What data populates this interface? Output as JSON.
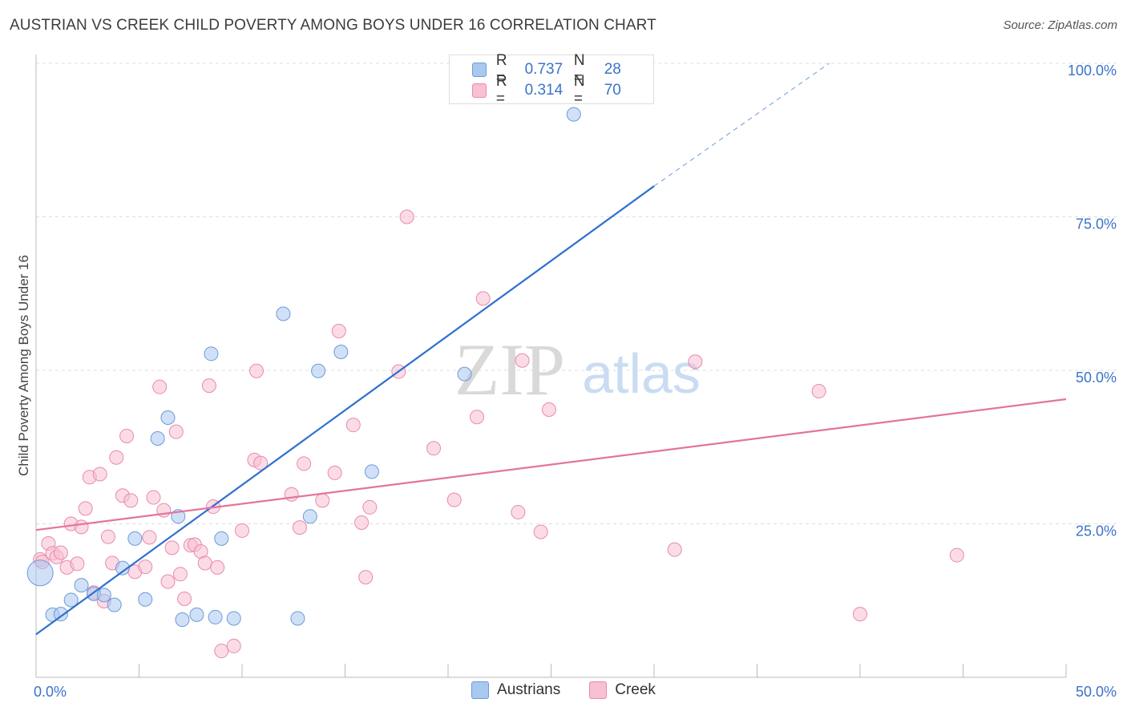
{
  "title": "AUSTRIAN VS CREEK CHILD POVERTY AMONG BOYS UNDER 16 CORRELATION CHART",
  "source": "Source: ZipAtlas.com",
  "watermark": {
    "zip": "ZIP",
    "atlas": "atlas"
  },
  "legend": {
    "r_label": "R =",
    "n_label": "N =",
    "entries": [
      {
        "r": "0.737",
        "n": "28",
        "fill": "#a9c8f0",
        "stroke": "#6b9bd8"
      },
      {
        "r": "0.314",
        "n": "70",
        "fill": "#f8c0d2",
        "stroke": "#e98aab"
      }
    ]
  },
  "colors": {
    "austrians_fill": "#a9c8f0",
    "austrians_stroke": "#6b9bd8",
    "austrians_line": "#2f6fcf",
    "creek_fill": "#f8c0d2",
    "creek_stroke": "#e98aab",
    "creek_line": "#e4749c",
    "tick_text": "#3b73c9",
    "grid": "#dddddd"
  },
  "chart_data": {
    "type": "scatter",
    "title": "AUSTRIAN VS CREEK CHILD POVERTY AMONG BOYS UNDER 16 CORRELATION CHART",
    "xlabel": "",
    "ylabel": "Child Poverty Among Boys Under 16",
    "xlim": [
      0,
      50
    ],
    "ylim": [
      0,
      100
    ],
    "x_tick_labels": [
      "0.0%",
      "50.0%"
    ],
    "y_tick_labels": [
      "25.0%",
      "50.0%",
      "75.0%",
      "100.0%"
    ],
    "y_tick_values": [
      25,
      50,
      75,
      100
    ],
    "grid": true,
    "legend_position": "top-center",
    "series": [
      {
        "name": "Austrians",
        "r": 0.737,
        "n": 28,
        "trend": {
          "x": [
            0,
            30
          ],
          "y": [
            7,
            80
          ],
          "dashed_extension_to": [
            38.5,
            100
          ]
        },
        "points": [
          {
            "x": 0.2,
            "y": 17.0,
            "big": true
          },
          {
            "x": 0.8,
            "y": 10.2
          },
          {
            "x": 1.2,
            "y": 10.3
          },
          {
            "x": 1.7,
            "y": 12.6
          },
          {
            "x": 2.2,
            "y": 15.0
          },
          {
            "x": 2.8,
            "y": 13.6
          },
          {
            "x": 3.3,
            "y": 13.4
          },
          {
            "x": 3.8,
            "y": 11.8
          },
          {
            "x": 4.2,
            "y": 17.8
          },
          {
            "x": 4.8,
            "y": 22.6
          },
          {
            "x": 5.3,
            "y": 12.7
          },
          {
            "x": 5.9,
            "y": 38.9
          },
          {
            "x": 6.4,
            "y": 42.3
          },
          {
            "x": 6.9,
            "y": 26.2
          },
          {
            "x": 7.1,
            "y": 9.4
          },
          {
            "x": 7.8,
            "y": 10.2
          },
          {
            "x": 8.5,
            "y": 52.7
          },
          {
            "x": 8.7,
            "y": 9.8
          },
          {
            "x": 9.0,
            "y": 22.6
          },
          {
            "x": 9.6,
            "y": 9.6
          },
          {
            "x": 12.0,
            "y": 59.2
          },
          {
            "x": 12.7,
            "y": 9.6
          },
          {
            "x": 13.3,
            "y": 26.2
          },
          {
            "x": 13.7,
            "y": 49.9
          },
          {
            "x": 14.8,
            "y": 53.0
          },
          {
            "x": 16.3,
            "y": 33.5
          },
          {
            "x": 20.8,
            "y": 49.4
          },
          {
            "x": 26.1,
            "y": 91.7
          }
        ]
      },
      {
        "name": "Creek",
        "r": 0.314,
        "n": 70,
        "trend": {
          "x": [
            0,
            50
          ],
          "y": [
            24,
            45.3
          ]
        },
        "points": [
          {
            "x": 0.2,
            "y": 19.2
          },
          {
            "x": 0.3,
            "y": 18.8
          },
          {
            "x": 0.6,
            "y": 21.8
          },
          {
            "x": 0.8,
            "y": 20.2
          },
          {
            "x": 1.0,
            "y": 19.6
          },
          {
            "x": 1.2,
            "y": 20.3
          },
          {
            "x": 1.5,
            "y": 17.9
          },
          {
            "x": 1.7,
            "y": 25.0
          },
          {
            "x": 2.0,
            "y": 18.5
          },
          {
            "x": 2.2,
            "y": 24.5
          },
          {
            "x": 2.4,
            "y": 27.5
          },
          {
            "x": 2.6,
            "y": 32.6
          },
          {
            "x": 2.8,
            "y": 13.8
          },
          {
            "x": 3.1,
            "y": 33.1
          },
          {
            "x": 3.3,
            "y": 12.4
          },
          {
            "x": 3.5,
            "y": 22.9
          },
          {
            "x": 3.7,
            "y": 18.6
          },
          {
            "x": 3.9,
            "y": 35.8
          },
          {
            "x": 4.2,
            "y": 29.6
          },
          {
            "x": 4.4,
            "y": 39.3
          },
          {
            "x": 4.6,
            "y": 28.8
          },
          {
            "x": 4.8,
            "y": 17.2
          },
          {
            "x": 5.3,
            "y": 18.0
          },
          {
            "x": 5.5,
            "y": 22.8
          },
          {
            "x": 5.7,
            "y": 29.3
          },
          {
            "x": 6.0,
            "y": 47.3
          },
          {
            "x": 6.2,
            "y": 27.2
          },
          {
            "x": 6.4,
            "y": 15.6
          },
          {
            "x": 6.6,
            "y": 21.1
          },
          {
            "x": 6.8,
            "y": 40.0
          },
          {
            "x": 7.0,
            "y": 16.8
          },
          {
            "x": 7.2,
            "y": 12.8
          },
          {
            "x": 7.5,
            "y": 21.5
          },
          {
            "x": 7.7,
            "y": 21.6
          },
          {
            "x": 8.0,
            "y": 20.5
          },
          {
            "x": 8.2,
            "y": 18.6
          },
          {
            "x": 8.4,
            "y": 47.5
          },
          {
            "x": 8.6,
            "y": 27.8
          },
          {
            "x": 8.8,
            "y": 17.9
          },
          {
            "x": 9.0,
            "y": 4.3
          },
          {
            "x": 9.6,
            "y": 5.1
          },
          {
            "x": 10.0,
            "y": 23.9
          },
          {
            "x": 10.6,
            "y": 35.4
          },
          {
            "x": 10.7,
            "y": 49.9
          },
          {
            "x": 10.9,
            "y": 34.9
          },
          {
            "x": 12.4,
            "y": 29.8
          },
          {
            "x": 12.8,
            "y": 24.4
          },
          {
            "x": 13.0,
            "y": 34.8
          },
          {
            "x": 13.9,
            "y": 28.8
          },
          {
            "x": 14.5,
            "y": 33.3
          },
          {
            "x": 14.7,
            "y": 56.4
          },
          {
            "x": 15.4,
            "y": 41.1
          },
          {
            "x": 15.8,
            "y": 25.2
          },
          {
            "x": 16.0,
            "y": 16.3
          },
          {
            "x": 16.2,
            "y": 27.7
          },
          {
            "x": 17.6,
            "y": 49.8
          },
          {
            "x": 18.0,
            "y": 75.0
          },
          {
            "x": 19.3,
            "y": 37.3
          },
          {
            "x": 20.3,
            "y": 28.9
          },
          {
            "x": 21.4,
            "y": 42.4
          },
          {
            "x": 21.7,
            "y": 61.7
          },
          {
            "x": 23.4,
            "y": 26.9
          },
          {
            "x": 23.6,
            "y": 51.6
          },
          {
            "x": 24.5,
            "y": 23.7
          },
          {
            "x": 24.9,
            "y": 43.6
          },
          {
            "x": 31.0,
            "y": 20.8
          },
          {
            "x": 32.0,
            "y": 51.4
          },
          {
            "x": 38.0,
            "y": 46.6
          },
          {
            "x": 40.0,
            "y": 10.3
          },
          {
            "x": 44.7,
            "y": 19.9
          }
        ]
      }
    ]
  }
}
